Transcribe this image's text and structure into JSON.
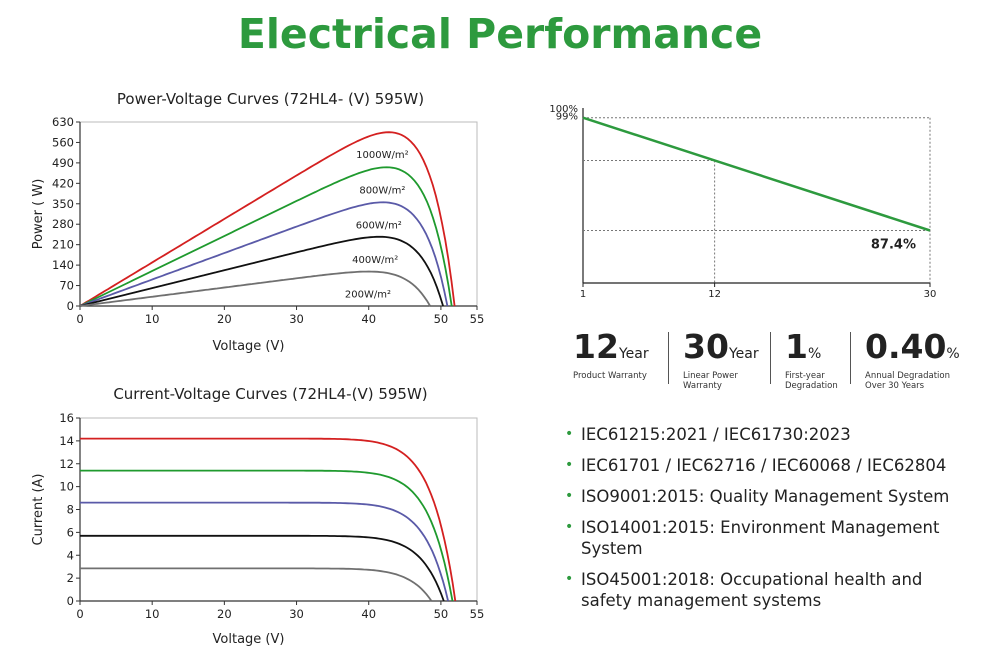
{
  "page": {
    "title": "Electrical Performance"
  },
  "chart_data": [
    {
      "type": "line",
      "title": "Power-Voltage Curves (72HL4- (V)  595W)",
      "xlabel": "Voltage (V)",
      "ylabel": "Power ( W)",
      "xlim": [
        0,
        55
      ],
      "ylim": [
        0,
        630
      ],
      "xticks": [
        0,
        10,
        20,
        30,
        40,
        50,
        55
      ],
      "yticks": [
        0,
        70,
        140,
        210,
        280,
        350,
        420,
        490,
        560,
        630
      ],
      "series": [
        {
          "name": "1000W/m²",
          "color": "#d42020",
          "voc": 51.9,
          "peak_v": 43.0,
          "peak_p": 595
        },
        {
          "name": "800W/m²",
          "color": "#1f9a2e",
          "voc": 51.5,
          "peak_v": 43.0,
          "peak_p": 475
        },
        {
          "name": "600W/m²",
          "color": "#5a5aa8",
          "voc": 50.9,
          "peak_v": 42.5,
          "peak_p": 355
        },
        {
          "name": "400W/m²",
          "color": "#111111",
          "voc": 50.3,
          "peak_v": 42.0,
          "peak_p": 237
        },
        {
          "name": "200W/m²",
          "color": "#707070",
          "voc": 48.5,
          "peak_v": 41.0,
          "peak_p": 118
        }
      ]
    },
    {
      "type": "line",
      "title": "Current-Voltage Curves (72HL4-(V) 595W)",
      "xlabel": "Voltage (V)",
      "ylabel": "Current (A)",
      "xlim": [
        0,
        55
      ],
      "ylim": [
        0,
        16
      ],
      "xticks": [
        0,
        10,
        20,
        30,
        40,
        50,
        55
      ],
      "yticks": [
        0,
        2,
        4,
        6,
        8,
        10,
        12,
        14,
        16
      ],
      "series": [
        {
          "color": "#d42020",
          "isc": 14.2,
          "voc": 52.0
        },
        {
          "color": "#1f9a2e",
          "isc": 11.4,
          "voc": 51.6
        },
        {
          "color": "#5a5aa8",
          "isc": 8.6,
          "voc": 51.0
        },
        {
          "color": "#111111",
          "isc": 5.7,
          "voc": 50.4
        },
        {
          "color": "#707070",
          "isc": 2.85,
          "voc": 48.7
        }
      ]
    },
    {
      "type": "line",
      "title": "",
      "xlim": [
        1,
        30
      ],
      "ylim": [
        82,
        100
      ],
      "xticks": [
        1,
        12,
        30
      ],
      "ytick_labels": [
        "100%",
        "99%"
      ],
      "series": [
        {
          "color": "#2d9a3e",
          "x": [
            1,
            30
          ],
          "y": [
            99,
            87.4
          ]
        }
      ],
      "annotation": "87.4%"
    }
  ],
  "stats": [
    {
      "value": "12",
      "unit": "Year",
      "label": "Product Warranty"
    },
    {
      "value": "30",
      "unit": "Year",
      "label": "Linear Power\nWarranty"
    },
    {
      "value": "1",
      "unit": "%",
      "label": "First-year\nDegradation"
    },
    {
      "value": "0.40",
      "unit": "%",
      "label": "Annual Degradation\nOver 30 Years"
    }
  ],
  "certifications": [
    "IEC61215:2021 / IEC61730:2023",
    "IEC61701 / IEC62716 / IEC60068 / IEC62804",
    "ISO9001:2015: Quality Management System",
    "ISO14001:2015: Environment Management System",
    "ISO45001:2018: Occupational health and safety management systems"
  ],
  "colors": {
    "brand_green": "#2d9a3e"
  }
}
